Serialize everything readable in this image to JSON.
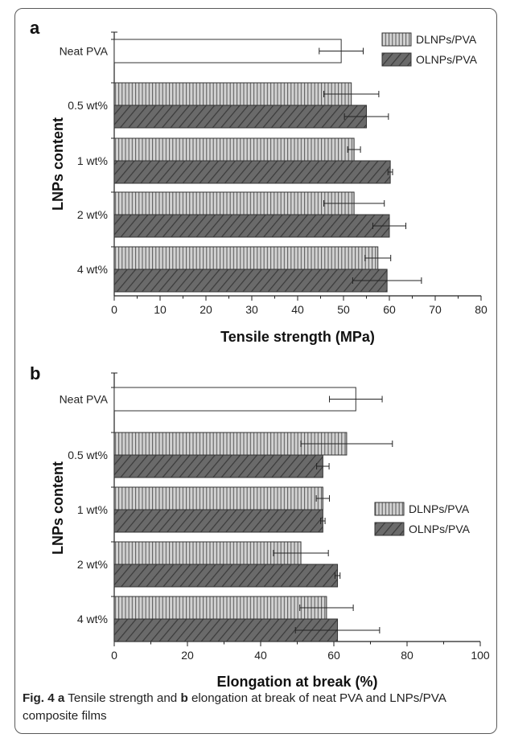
{
  "chart_data": [
    {
      "panel_label": "a",
      "type": "bar",
      "orientation": "horizontal",
      "categories": [
        "Neat PVA",
        "0.5 wt%",
        "1 wt%",
        "2 wt%",
        "4 wt%"
      ],
      "xlabel": "Tensile strength (MPa)",
      "ylabel": "LNPs content",
      "xlim": [
        0,
        80
      ],
      "xticks": [
        "0",
        "10",
        "20",
        "30",
        "40",
        "50",
        "60",
        "70",
        "80"
      ],
      "legend_position": "top-right",
      "neat": {
        "value": 49.5,
        "error": 4.8
      },
      "series": [
        {
          "name": "DLNPs/PVA",
          "pattern": "vertical-lines",
          "values": [
            null,
            51.7,
            52.3,
            52.3,
            57.5
          ],
          "errors": [
            null,
            6.0,
            1.4,
            6.6,
            2.8
          ]
        },
        {
          "name": "OLNPs/PVA",
          "pattern": "diagonal-lines",
          "values": [
            null,
            55.0,
            60.2,
            60.0,
            59.5
          ],
          "errors": [
            null,
            4.8,
            0.5,
            3.6,
            7.5
          ]
        }
      ]
    },
    {
      "panel_label": "b",
      "type": "bar",
      "orientation": "horizontal",
      "categories": [
        "Neat PVA",
        "0.5 wt%",
        "1 wt%",
        "2 wt%",
        "4 wt%"
      ],
      "xlabel": "Elongation at break (%)",
      "ylabel": "LNPs content",
      "xlim": [
        0,
        100
      ],
      "xticks": [
        "0",
        "20",
        "40",
        "60",
        "80",
        "100"
      ],
      "legend_position": "center-right",
      "neat": {
        "value": 66.0,
        "error": 7.2
      },
      "series": [
        {
          "name": "DLNPs/PVA",
          "pattern": "vertical-lines",
          "values": [
            null,
            63.5,
            57.0,
            51.0,
            58.0
          ],
          "errors": [
            null,
            12.5,
            1.8,
            7.5,
            7.3
          ]
        },
        {
          "name": "OLNPs/PVA",
          "pattern": "diagonal-lines",
          "values": [
            null,
            57.0,
            57.0,
            61.0,
            61.0
          ],
          "errors": [
            null,
            1.7,
            0.6,
            0.7,
            11.5
          ]
        }
      ]
    }
  ],
  "caption": {
    "fig_label": "Fig. 4",
    "part_a": "a",
    "text_a": " Tensile strength and ",
    "part_b": "b",
    "text_b": " elongation at break of neat PVA and LNPs/PVA composite films"
  }
}
